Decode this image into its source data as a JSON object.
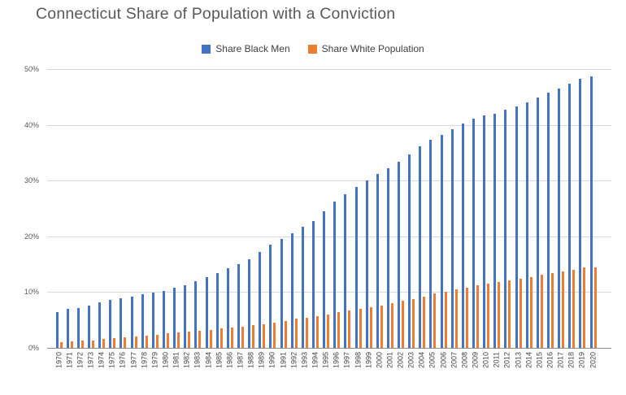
{
  "colors": {
    "title_text": "#595959",
    "tick_text": "#595959",
    "x_label_text": "#444444",
    "gridline": "#D9D9D9",
    "axis_line": "#8C8C8C",
    "background": "#FFFFFF"
  },
  "chart_data": {
    "type": "bar",
    "title": "Connecticut Share of Population with a Conviction",
    "xlabel": "",
    "ylabel": "",
    "ylim": [
      0,
      50
    ],
    "y_ticks": [
      "0%",
      "10%",
      "20%",
      "30%",
      "40%",
      "50%"
    ],
    "grid": true,
    "legend_position": "top",
    "categories": [
      "1970",
      "1971",
      "1972",
      "1973",
      "1974",
      "1975",
      "1976",
      "1977",
      "1978",
      "1979",
      "1980",
      "1981",
      "1982",
      "1983",
      "1984",
      "1985",
      "1986",
      "1987",
      "1988",
      "1989",
      "1990",
      "1991",
      "1992",
      "1993",
      "1994",
      "1995",
      "1996",
      "1997",
      "1998",
      "1999",
      "2000",
      "2001",
      "2002",
      "2003",
      "2004",
      "2005",
      "2006",
      "2007",
      "2008",
      "2009",
      "2010",
      "2011",
      "2012",
      "2013",
      "2014",
      "2015",
      "2016",
      "2017",
      "2018",
      "2019",
      "2020"
    ],
    "series": [
      {
        "name": "Share Black Men",
        "color": "#4472C4",
        "values": [
          6.6,
          7.1,
          7.3,
          7.8,
          8.3,
          8.7,
          9.1,
          9.4,
          9.7,
          10.0,
          10.4,
          11.0,
          11.4,
          12.1,
          12.8,
          13.6,
          14.4,
          15.2,
          16.1,
          17.3,
          18.7,
          19.7,
          20.7,
          21.8,
          22.9,
          24.7,
          26.4,
          27.7,
          29.0,
          30.2,
          31.4,
          32.3,
          33.5,
          34.9,
          36.3,
          37.5,
          38.4,
          39.3,
          40.4,
          41.2,
          41.8,
          42.2,
          42.8,
          43.4,
          44.2,
          45.1,
          45.9,
          46.6,
          47.5,
          48.4,
          48.8
        ]
      },
      {
        "name": "Share White Population",
        "color": "#ED7D31",
        "values": [
          1.2,
          1.3,
          1.4,
          1.5,
          1.7,
          1.9,
          2.0,
          2.2,
          2.3,
          2.5,
          2.7,
          2.9,
          3.0,
          3.2,
          3.4,
          3.6,
          3.8,
          4.0,
          4.2,
          4.4,
          4.7,
          5.0,
          5.4,
          5.6,
          5.8,
          6.1,
          6.5,
          6.8,
          7.1,
          7.4,
          7.7,
          8.2,
          8.6,
          8.9,
          9.4,
          9.9,
          10.2,
          10.6,
          10.9,
          11.3,
          11.6,
          11.9,
          12.3,
          12.6,
          12.9,
          13.2,
          13.5,
          13.9,
          14.2,
          14.6,
          14.6
        ]
      }
    ]
  }
}
